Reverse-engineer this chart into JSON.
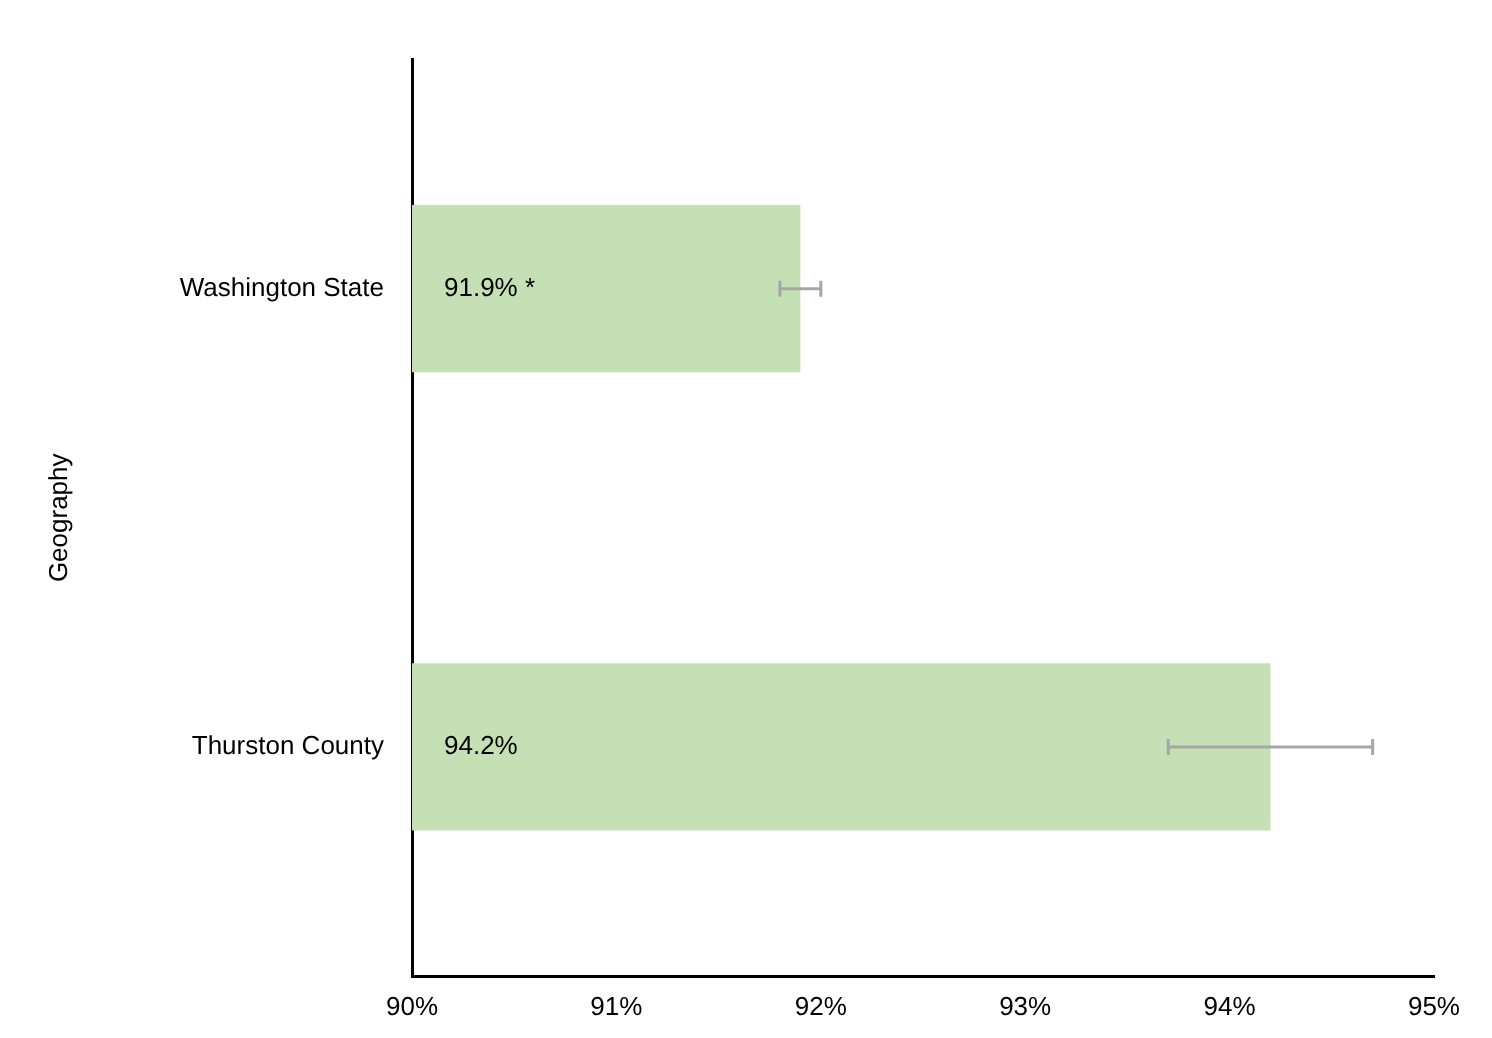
{
  "chart_data": {
    "type": "bar",
    "orientation": "horizontal",
    "ylabel": "Geography",
    "categories": [
      "Washington State",
      "Thurston County"
    ],
    "values": [
      91.9,
      94.2
    ],
    "errors": [
      [
        91.8,
        92.0
      ],
      [
        93.7,
        94.7
      ]
    ],
    "value_labels": [
      "91.9% *",
      "94.2%"
    ],
    "color": "#c5e0b4",
    "xlim": [
      90,
      95
    ],
    "xticks": [
      {
        "value": 90,
        "label": "90%"
      },
      {
        "value": 91,
        "label": "91%"
      },
      {
        "value": 92,
        "label": "92%"
      },
      {
        "value": 93,
        "label": "93%"
      },
      {
        "value": 94,
        "label": "94%"
      },
      {
        "value": 95,
        "label": "95%"
      }
    ],
    "grid": false,
    "legend": false
  }
}
